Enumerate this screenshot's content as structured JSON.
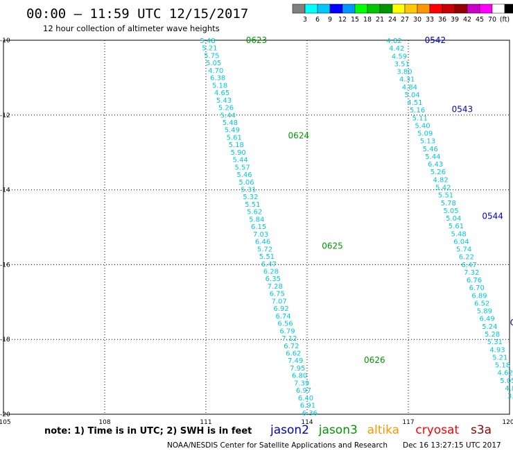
{
  "header": {
    "title": "00:00 – 11:59 UTC 12/15/2017",
    "subtitle": "12 hour collection of altimeter wave heights"
  },
  "colorbar": {
    "colors": [
      "#808080",
      "#00ffff",
      "#00c8ff",
      "#0000ff",
      "#0096ff",
      "#00ff00",
      "#00c800",
      "#009600",
      "#ffff00",
      "#ffc800",
      "#ff9600",
      "#ff0000",
      "#c80000",
      "#960000",
      "#c800c8",
      "#ff00ff",
      "#ffffff",
      "#000000"
    ],
    "labels": [
      "3",
      "6",
      "9",
      "12",
      "15",
      "18",
      "21",
      "24",
      "27",
      "30",
      "33",
      "36",
      "39",
      "42",
      "45",
      "70",
      "(ft)"
    ]
  },
  "footer": {
    "note": "note:  1) Time is in UTC;  2) SWH is in feet",
    "satellites": [
      {
        "name": "jason2",
        "color": "#0000cc"
      },
      {
        "name": "jason3",
        "color": "#009600"
      },
      {
        "name": "altika",
        "color": "#ff9600"
      },
      {
        "name": "cryosat",
        "color": "#ff0000"
      },
      {
        "name": "s3a",
        "color": "#960000"
      }
    ],
    "credit": "NOAA/NESDIS Center for Satellite Applications and Research",
    "timestamp": "Dec 16 13:27:15 UTC 2017"
  },
  "chart_data": {
    "type": "scatter",
    "xlim": [
      105,
      120
    ],
    "ylim": [
      -20,
      -10
    ],
    "x_ticks": [
      "105",
      "108",
      "111",
      "114",
      "117",
      "120"
    ],
    "y_ticks": [
      "-10",
      "-12",
      "-14",
      "-16",
      "-18",
      "-20"
    ],
    "grid": true,
    "value_color": "#00c8dc",
    "tracks": [
      {
        "satellite": "jason3",
        "label_color": "#009600",
        "start": {
          "lon": 111.05,
          "lat": -10.0
        },
        "end": {
          "lon": 114.08,
          "lat": -19.95
        },
        "values": [
          "5.48",
          "5.21",
          "5.75",
          "5.05",
          "4.70",
          "6.38",
          "5.18",
          "4.65",
          "5.43",
          "5.26",
          "5.44",
          "5.48",
          "5.49",
          "5.61",
          "5.18",
          "5.90",
          "5.44",
          "5.57",
          "5.46",
          "5.06",
          "5.31",
          "5.32",
          "5.51",
          "5.62",
          "5.84",
          "6.15",
          "7.03",
          "6.46",
          "5.72",
          "5.51",
          "6.47",
          "6.28",
          "6.35",
          "7.28",
          "6.75",
          "7.07",
          "6.92",
          "6.74",
          "6.56",
          "6.79",
          "7.12",
          "6.72",
          "6.62",
          "7.49",
          "7.95",
          "6.80",
          "7.39",
          "6.97",
          "6.40",
          "6.91",
          "6.36"
        ],
        "time_labels": [
          {
            "text": "0623",
            "lon": 112.5,
            "lat": -10.0
          },
          {
            "text": "0624",
            "lon": 113.75,
            "lat": -12.55
          },
          {
            "text": "0625",
            "lon": 114.75,
            "lat": -15.5
          },
          {
            "text": "0626",
            "lon": 116.0,
            "lat": -18.55
          }
        ]
      },
      {
        "satellite": "jason2",
        "label_color": "#0000cc",
        "start": {
          "lon": 116.58,
          "lat": -10.0
        },
        "end": {
          "lon": 120.1,
          "lat": -19.5
        },
        "values": [
          "4.82",
          "4.42",
          "4.59",
          "3.51",
          "3.80",
          "4.31",
          "4.84",
          "5.04",
          "4.51",
          "5.16",
          "5.11",
          "5.40",
          "5.09",
          "5.13",
          "5.46",
          "5.44",
          "6.43",
          "5.26",
          "4.82",
          "5.42",
          "5.51",
          "5.78",
          "5.05",
          "5.04",
          "5.61",
          "5.48",
          "6.04",
          "5.74",
          "6.22",
          "6.47",
          "7.32",
          "6.76",
          "6.70",
          "6.89",
          "6.52",
          "5.89",
          "6.49",
          "5.24",
          "5.28",
          "5.31",
          "4.93",
          "5.21",
          "5.18",
          "4.62",
          "5.05",
          "4.8",
          "3.9"
        ],
        "time_labels": [
          {
            "text": "0542",
            "lon": 117.8,
            "lat": -10.0
          },
          {
            "text": "0543",
            "lon": 118.6,
            "lat": -11.85
          },
          {
            "text": "0544",
            "lon": 119.5,
            "lat": -14.7
          },
          {
            "text": "C",
            "lon": 120.1,
            "lat": -17.55
          }
        ]
      }
    ]
  }
}
